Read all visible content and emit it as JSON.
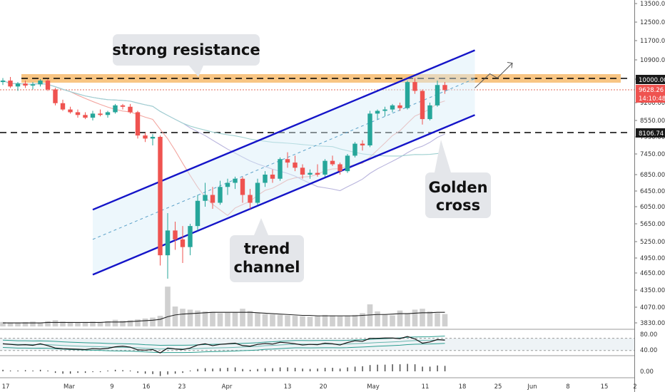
{
  "chart_data": {
    "type": "candlestick",
    "symbol": "BTCUSD",
    "price_scale": {
      "ticks": [
        "13500.00",
        "12500.00",
        "11700.00",
        "10900.00",
        "10000.00",
        "9200.00",
        "8550.00",
        "7950.00",
        "7450.00",
        "6850.00",
        "6450.00",
        "6050.00",
        "5650.00",
        "5250.00",
        "4950.00",
        "4650.00",
        "4350.00",
        "4070.00",
        "3830.00"
      ],
      "ylim": [
        3800,
        13500
      ]
    },
    "time_axis": {
      "labels": [
        "17",
        "Mar",
        "9",
        "16",
        "23",
        "Apr",
        "13",
        "20",
        "May",
        "11",
        "18",
        "25",
        "Jun",
        "8",
        "15",
        "2"
      ]
    },
    "price_badges": {
      "resistance": "10000.00",
      "last_price": "9628.26",
      "countdown": "14:10:48",
      "support": "8106.74"
    },
    "annotations": {
      "resistance": "strong resistance",
      "channel_line1": "trend",
      "channel_line2": "channel",
      "golden_line1": "Golden",
      "golden_line2": "cross"
    },
    "levels": {
      "resistance": 10000,
      "support": 8106.74
    },
    "channel": {
      "upper": [
        [
          12,
          5980
        ],
        [
          63,
          11300
        ]
      ],
      "lower": [
        [
          12,
          4620
        ],
        [
          63,
          8750
        ]
      ],
      "projection": [
        [
          63,
          9700
        ],
        [
          65,
          10250
        ],
        [
          66,
          10050
        ],
        [
          68,
          10750
        ]
      ]
    },
    "candles": [
      [
        9900,
        10050,
        9800,
        9950
      ],
      [
        9950,
        10100,
        9700,
        9750
      ],
      [
        9750,
        9900,
        9600,
        9850
      ],
      [
        9850,
        9950,
        9700,
        9780
      ],
      [
        9780,
        9900,
        9650,
        9820
      ],
      [
        9820,
        10000,
        9750,
        9950
      ],
      [
        9950,
        10000,
        9600,
        9650
      ],
      [
        9650,
        9700,
        9100,
        9180
      ],
      [
        9180,
        9300,
        8900,
        8950
      ],
      [
        8950,
        9050,
        8800,
        8850
      ],
      [
        8850,
        8950,
        8650,
        8750
      ],
      [
        8750,
        8850,
        8600,
        8650
      ],
      [
        8650,
        8900,
        8550,
        8800
      ],
      [
        8800,
        8950,
        8700,
        8750
      ],
      [
        8750,
        8900,
        8650,
        8850
      ],
      [
        8850,
        9150,
        8800,
        9100
      ],
      [
        9100,
        9150,
        8950,
        9050
      ],
      [
        9050,
        9150,
        8800,
        8850
      ],
      [
        8850,
        8900,
        7900,
        8000
      ],
      [
        8000,
        8100,
        7800,
        7900
      ],
      [
        7900,
        8050,
        7700,
        7950
      ],
      [
        7950,
        8000,
        4800,
        5000
      ],
      [
        5000,
        5900,
        4550,
        5500
      ],
      [
        5500,
        5700,
        5100,
        5300
      ],
      [
        5300,
        5600,
        4850,
        5150
      ],
      [
        5150,
        5650,
        5000,
        5600
      ],
      [
        5600,
        6350,
        5500,
        6200
      ],
      [
        6200,
        6650,
        6050,
        6350
      ],
      [
        6350,
        6550,
        6000,
        6150
      ],
      [
        6150,
        6700,
        6100,
        6550
      ],
      [
        6550,
        6750,
        6350,
        6650
      ],
      [
        6650,
        6800,
        6500,
        6750
      ],
      [
        6750,
        6800,
        6150,
        6350
      ],
      [
        6350,
        6500,
        6000,
        6150
      ],
      [
        6150,
        6750,
        6100,
        6650
      ],
      [
        6650,
        6950,
        6550,
        6850
      ],
      [
        6850,
        7000,
        6650,
        6750
      ],
      [
        6750,
        7350,
        6700,
        7300
      ],
      [
        7300,
        7500,
        7050,
        7200
      ],
      [
        7200,
        7400,
        6950,
        7050
      ],
      [
        7050,
        7150,
        6750,
        6850
      ],
      [
        6850,
        7000,
        6750,
        6900
      ],
      [
        6900,
        7150,
        6800,
        6850
      ],
      [
        6850,
        7300,
        6800,
        7250
      ],
      [
        7250,
        7400,
        7100,
        7150
      ],
      [
        7150,
        7200,
        6850,
        6950
      ],
      [
        6950,
        7450,
        6900,
        7400
      ],
      [
        7400,
        7800,
        7350,
        7750
      ],
      [
        7750,
        7850,
        7550,
        7700
      ],
      [
        7700,
        8900,
        7650,
        8800
      ],
      [
        8800,
        8950,
        8600,
        8900
      ],
      [
        8900,
        9050,
        8700,
        8950
      ],
      [
        8950,
        9150,
        8850,
        9100
      ],
      [
        9100,
        9200,
        8900,
        9000
      ],
      [
        9000,
        9950,
        8950,
        9900
      ],
      [
        9900,
        10050,
        9500,
        9600
      ],
      [
        9600,
        9650,
        8400,
        8600
      ],
      [
        8600,
        9200,
        8550,
        9100
      ],
      [
        9100,
        9950,
        9050,
        9800
      ],
      [
        9800,
        9900,
        9500,
        9628
      ]
    ],
    "volume": [
      10,
      9,
      9,
      10,
      11,
      9,
      12,
      14,
      11,
      10,
      9,
      10,
      11,
      10,
      12,
      15,
      13,
      14,
      16,
      18,
      20,
      24,
      90,
      45,
      40,
      38,
      36,
      34,
      33,
      30,
      31,
      32,
      40,
      35,
      30,
      28,
      27,
      26,
      25,
      24,
      23,
      22,
      24,
      26,
      25,
      23,
      24,
      26,
      30,
      50,
      34,
      28,
      25,
      36,
      30,
      38,
      40,
      34,
      30,
      28
    ],
    "volume_ma": [
      8,
      8,
      8,
      8,
      8,
      8,
      9,
      9,
      9,
      9,
      9,
      9,
      9,
      9,
      10,
      10,
      10,
      11,
      12,
      13,
      14,
      16,
      22,
      26,
      28,
      29,
      30,
      31,
      32,
      32,
      32,
      32,
      32,
      32,
      31,
      30,
      29,
      28,
      27,
      26,
      25,
      25,
      24,
      24,
      24,
      24,
      24,
      24,
      25,
      26,
      27,
      27,
      28,
      29,
      29,
      30,
      31,
      31,
      32,
      32
    ],
    "rsi": [
      52,
      50,
      48,
      49,
      47,
      52,
      46,
      38,
      36,
      35,
      34,
      33,
      36,
      35,
      37,
      42,
      44,
      41,
      32,
      31,
      33,
      22,
      38,
      35,
      33,
      38,
      48,
      52,
      46,
      50,
      52,
      54,
      46,
      44,
      50,
      53,
      51,
      57,
      55,
      52,
      48,
      50,
      49,
      54,
      52,
      48,
      56,
      62,
      60,
      70,
      70,
      71,
      71,
      69,
      76,
      68,
      54,
      58,
      66,
      64
    ],
    "rsi_scale": [
      "80.00",
      "40.00"
    ],
    "macd_scale": [
      "0.00"
    ],
    "macd_hist": [
      0.2,
      0.1,
      0.1,
      0.15,
      0.1,
      0.2,
      0.1,
      -0.2,
      -0.3,
      -0.3,
      -0.2,
      -0.2,
      -0.1,
      -0.1,
      0.1,
      0.2,
      0.15,
      0.1,
      -0.2,
      -0.3,
      -0.35,
      -0.6,
      -0.4,
      -0.3,
      -0.2,
      0.1,
      0.3,
      0.4,
      0.35,
      0.4,
      0.45,
      0.5,
      0.3,
      0.2,
      0.3,
      0.4,
      0.4,
      0.5,
      0.5,
      0.45,
      0.35,
      0.3,
      0.35,
      0.45,
      0.45,
      0.35,
      0.5,
      0.6,
      0.65,
      0.8,
      0.85,
      0.85,
      0.9,
      0.9,
      0.95,
      0.9,
      0.6,
      0.6,
      0.75,
      0.7
    ]
  }
}
